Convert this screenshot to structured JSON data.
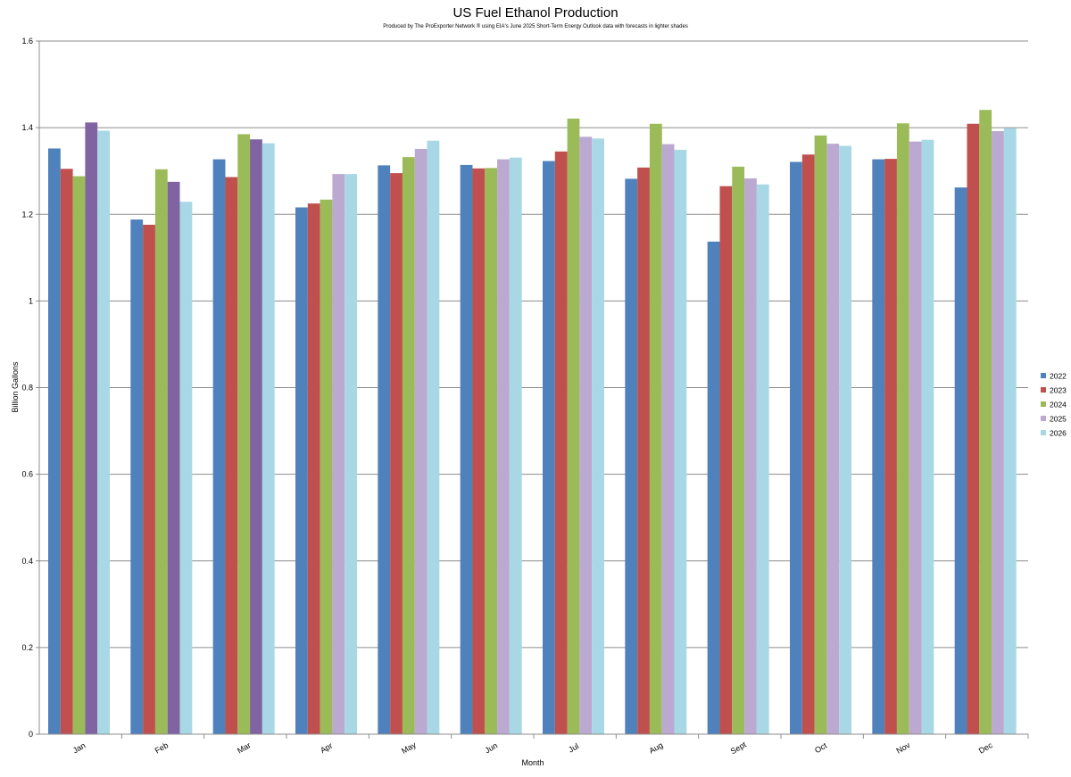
{
  "chart_data": {
    "type": "bar",
    "title": "US Fuel Ethanol Production",
    "subtitle": "Produced by The ProExporter Network ® using EIA's June 2025 Short-Term Energy Outlook data with forecasts in lighter shades",
    "xlabel": "Month",
    "ylabel": "Billion Gallons",
    "ylim": [
      0,
      1.6
    ],
    "yticks": [
      "0",
      "0.2",
      "0.4",
      "0.6",
      "0.8",
      "1",
      "1.2",
      "1.4",
      "1.6"
    ],
    "grid": true,
    "legend_position": "right",
    "categories": [
      "Jan",
      "Feb",
      "Mar",
      "Apr",
      "May",
      "Jun",
      "Jul",
      "Aug",
      "Sept",
      "Oct",
      "Nov",
      "Dec"
    ],
    "series": [
      {
        "name": "2022",
        "color": "#4F81BD",
        "values": [
          1.352,
          1.188,
          1.327,
          1.216,
          1.313,
          1.314,
          1.323,
          1.282,
          1.137,
          1.321,
          1.327,
          1.262
        ]
      },
      {
        "name": "2023",
        "color": "#C0504D",
        "values": [
          1.305,
          1.176,
          1.286,
          1.225,
          1.295,
          1.306,
          1.345,
          1.308,
          1.265,
          1.338,
          1.328,
          1.409
        ]
      },
      {
        "name": "2024",
        "color": "#9BBB59",
        "values": [
          1.288,
          1.304,
          1.385,
          1.234,
          1.332,
          1.307,
          1.421,
          1.409,
          1.31,
          1.382,
          1.41,
          1.441
        ]
      },
      {
        "name": "2025",
        "color": "#BCA9D2",
        "actual_color": "#8064A2",
        "actual_months": [
          "Jan",
          "Feb",
          "Mar"
        ],
        "values": [
          1.412,
          1.275,
          1.373,
          1.293,
          1.351,
          1.327,
          1.379,
          1.362,
          1.283,
          1.363,
          1.368,
          1.392
        ]
      },
      {
        "name": "2026",
        "color": "#A8D8E6",
        "values": [
          1.393,
          1.229,
          1.364,
          1.293,
          1.37,
          1.331,
          1.375,
          1.349,
          1.269,
          1.358,
          1.372,
          1.399
        ]
      }
    ]
  }
}
